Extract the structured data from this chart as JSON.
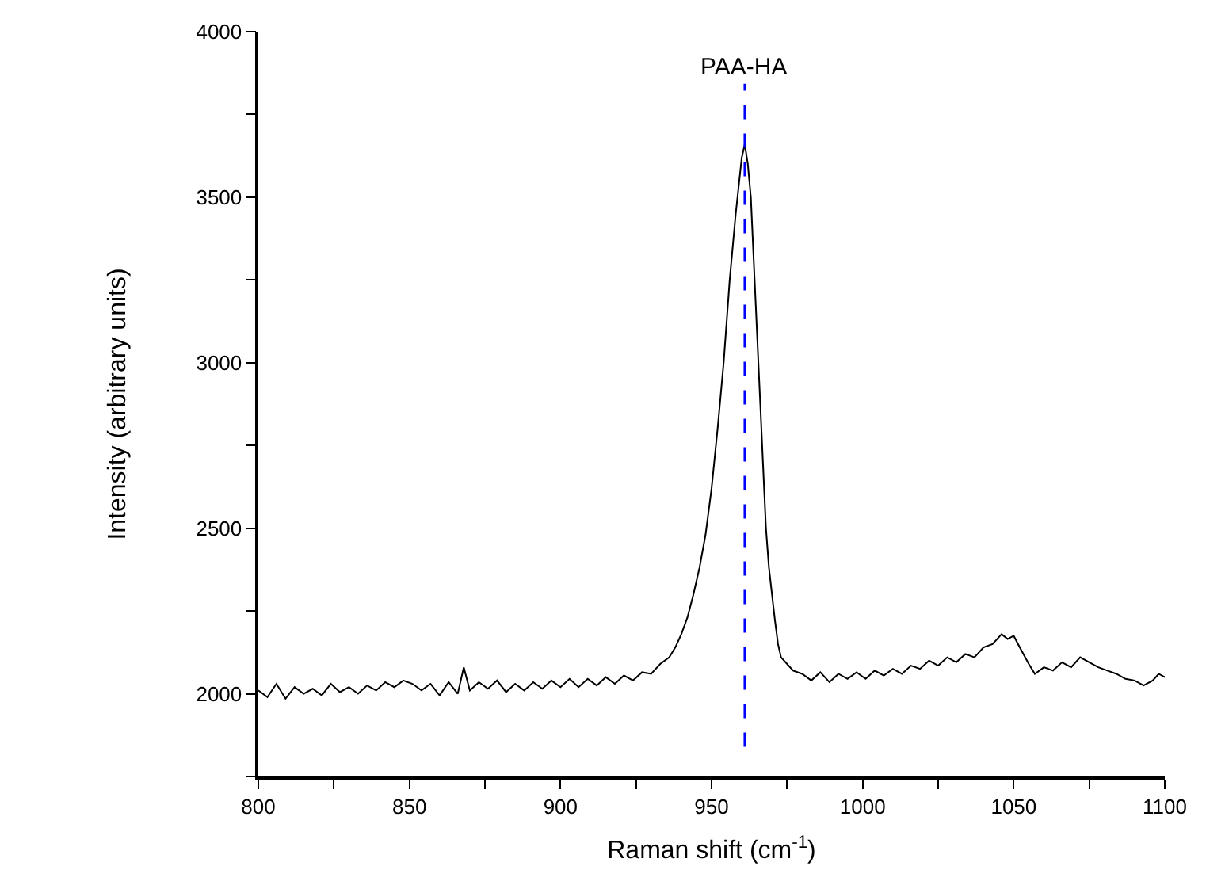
{
  "chart_data": {
    "type": "line",
    "xlabel": "Raman shift (cm$^{-1}$)",
    "ylabel": "Intensity (arbitrary units)",
    "xlim": [
      800,
      1100
    ],
    "xticks": [
      800,
      {
        "value": 825,
        "label": null
      },
      850,
      {
        "value": 875,
        "label": null
      },
      900,
      {
        "value": 925,
        "label": null
      },
      950,
      {
        "value": 975,
        "label": null
      },
      1000,
      {
        "value": 1025,
        "label": null
      },
      1050,
      {
        "value": 1075,
        "label": null
      },
      1100
    ],
    "ylim": [
      1750,
      4000
    ],
    "yticks": [
      {
        "value": 1750,
        "label": null
      },
      2000,
      {
        "value": 2250,
        "label": null
      },
      2500,
      {
        "value": 2750,
        "label": null
      },
      3000,
      {
        "value": 3250,
        "label": null
      },
      3500,
      {
        "value": 3750,
        "label": null
      },
      4000
    ],
    "marker": "none",
    "line_style": "solid",
    "ref_lines": [
      {
        "axis": "x",
        "value": 961,
        "label": "PAA-HA",
        "color": "#0000ff",
        "line_style": "dashed"
      }
    ],
    "series": [
      {
        "color": "#000000",
        "x": [
          800,
          803,
          806,
          809,
          812,
          815,
          818,
          821,
          824,
          827,
          830,
          833,
          836,
          839,
          842,
          845,
          848,
          851,
          854,
          857,
          860,
          863,
          866,
          868,
          870,
          873,
          876,
          879,
          882,
          885,
          888,
          891,
          894,
          897,
          900,
          903,
          906,
          909,
          912,
          915,
          918,
          921,
          924,
          927,
          930,
          933,
          936,
          938,
          940,
          942,
          944,
          946,
          948,
          950,
          952,
          954,
          956,
          958,
          960,
          961,
          962,
          963,
          964,
          965,
          966,
          967,
          968,
          969,
          970,
          971,
          972,
          973,
          975,
          977,
          980,
          983,
          986,
          989,
          992,
          995,
          998,
          1001,
          1004,
          1007,
          1010,
          1013,
          1016,
          1019,
          1022,
          1025,
          1028,
          1031,
          1034,
          1037,
          1040,
          1043,
          1046,
          1048,
          1050,
          1052,
          1055,
          1057,
          1060,
          1063,
          1066,
          1069,
          1072,
          1075,
          1078,
          1081,
          1084,
          1087,
          1090,
          1093,
          1096,
          1098,
          1100
        ],
        "values": [
          2010,
          1990,
          2030,
          1985,
          2020,
          2000,
          2015,
          1995,
          2030,
          2005,
          2020,
          2000,
          2025,
          2010,
          2035,
          2020,
          2040,
          2030,
          2010,
          2030,
          1995,
          2035,
          2000,
          2080,
          2010,
          2035,
          2015,
          2040,
          2005,
          2030,
          2010,
          2035,
          2015,
          2040,
          2020,
          2045,
          2020,
          2045,
          2025,
          2050,
          2030,
          2055,
          2040,
          2065,
          2060,
          2090,
          2110,
          2140,
          2180,
          2230,
          2300,
          2380,
          2480,
          2620,
          2800,
          3000,
          3250,
          3450,
          3620,
          3660,
          3600,
          3500,
          3300,
          3100,
          2900,
          2700,
          2500,
          2380,
          2300,
          2220,
          2150,
          2110,
          2090,
          2070,
          2060,
          2040,
          2065,
          2035,
          2060,
          2045,
          2065,
          2045,
          2070,
          2055,
          2075,
          2060,
          2085,
          2075,
          2100,
          2085,
          2110,
          2095,
          2120,
          2110,
          2140,
          2150,
          2180,
          2165,
          2175,
          2140,
          2090,
          2060,
          2080,
          2070,
          2095,
          2080,
          2110,
          2095,
          2080,
          2070,
          2060,
          2045,
          2040,
          2025,
          2040,
          2060,
          2050
        ]
      }
    ]
  }
}
